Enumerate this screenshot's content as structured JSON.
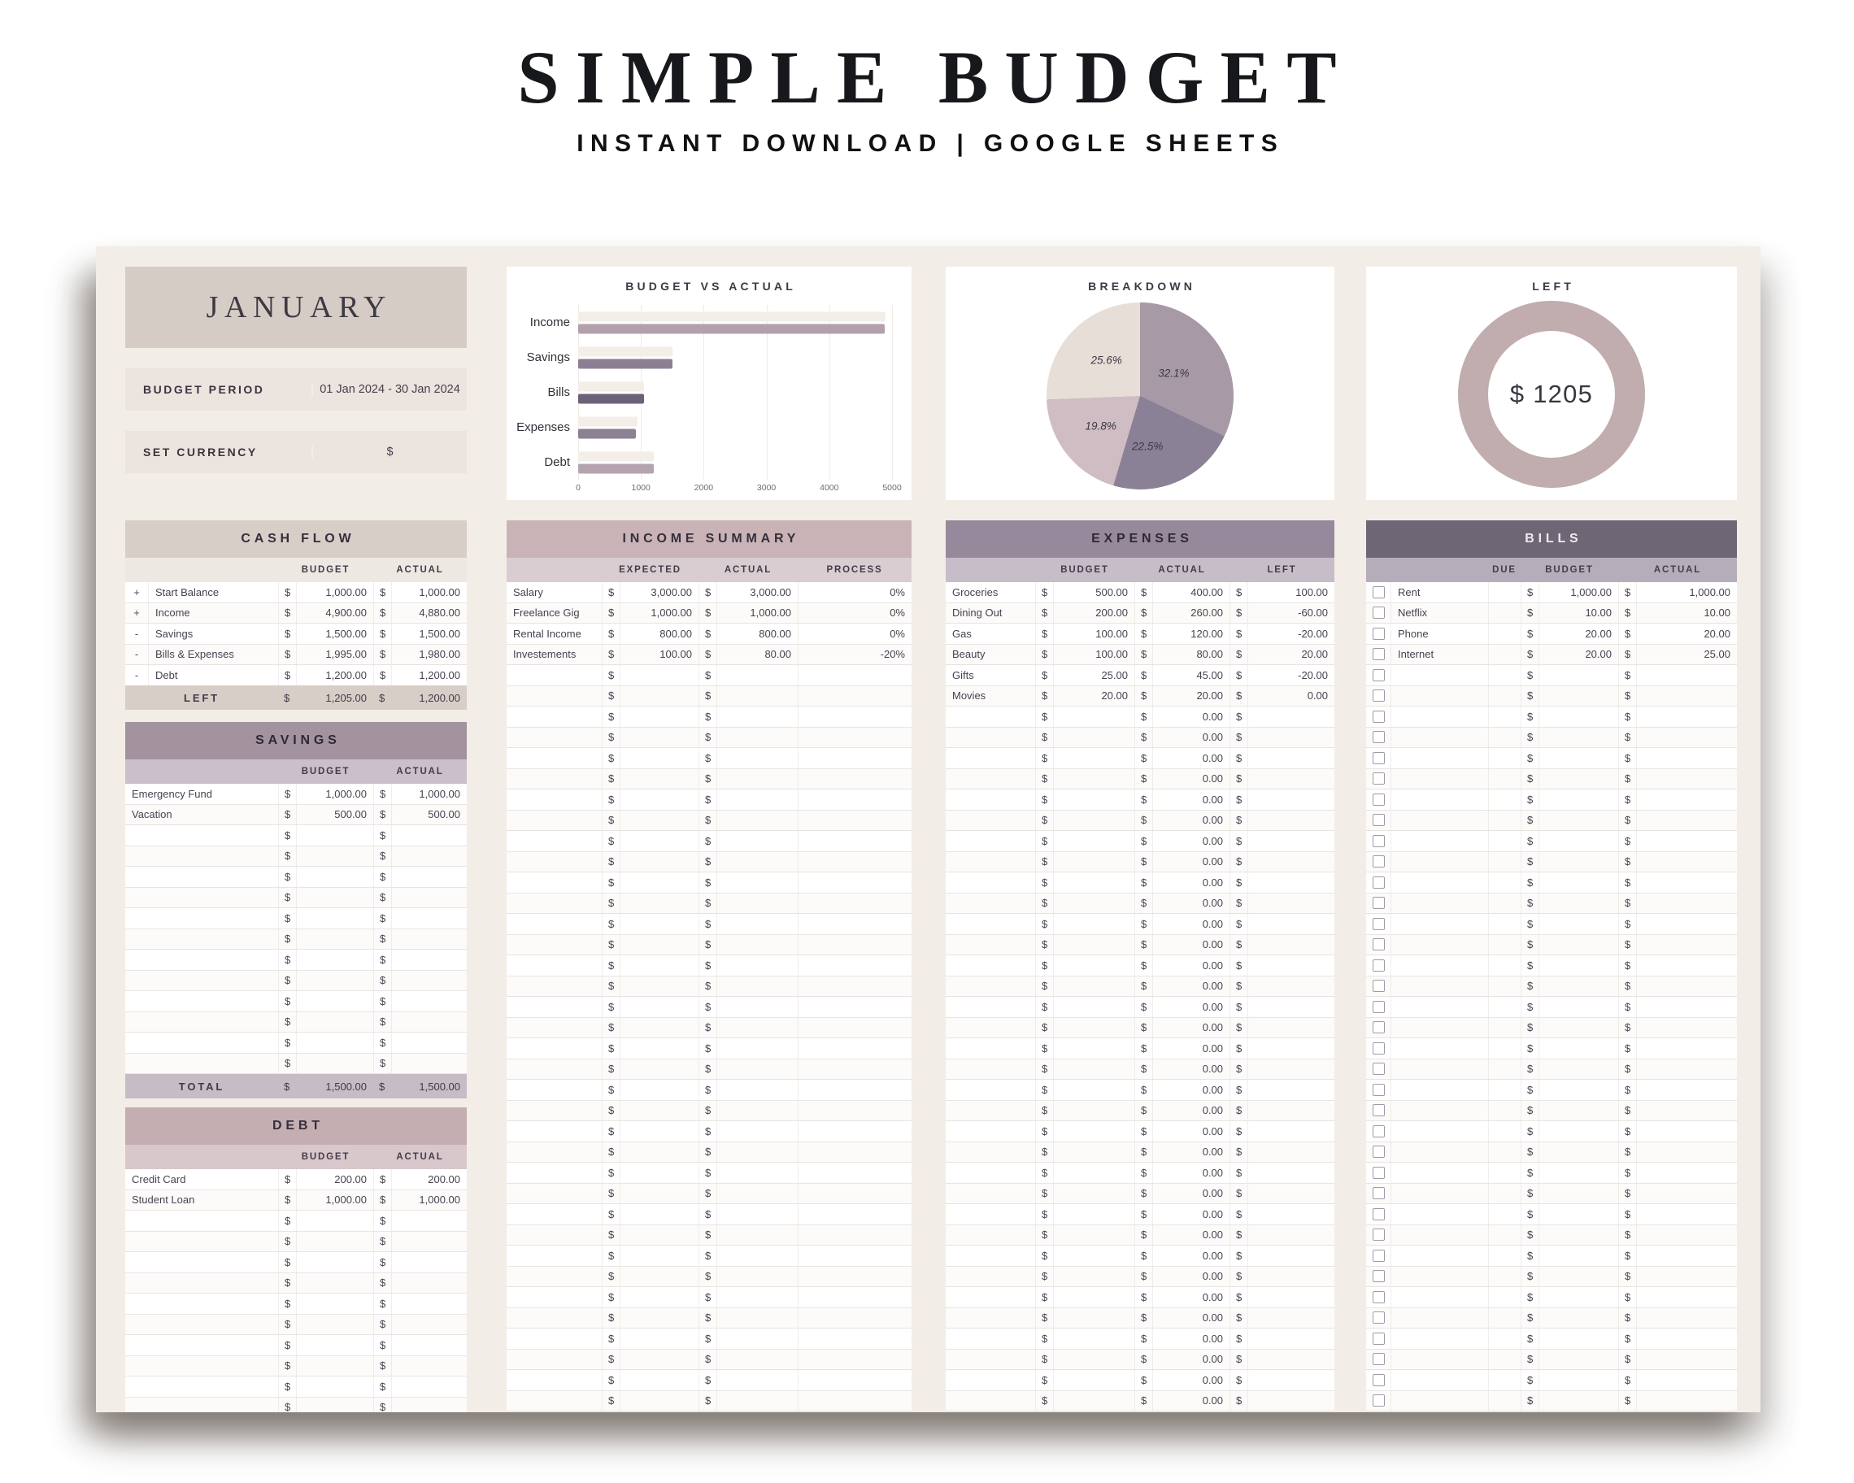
{
  "header": {
    "title": "SIMPLE BUDGET",
    "subtitle": "INSTANT DOWNLOAD | GOOGLE SHEETS"
  },
  "month_card": {
    "month": "JANUARY",
    "budget_period_label": "BUDGET PERIOD",
    "budget_period_value": "01 Jan 2024 - 30 Jan 2024",
    "set_currency_label": "SET CURRENCY",
    "set_currency_value": "$"
  },
  "currency_symbol": "$",
  "colors": {
    "sheet_bg": "#f3ede7",
    "month_block": "#d6ccc6",
    "info_row": "#ebe4df",
    "cashflow_header": "#d7cec8",
    "cashflow_subheader": "#eee8e3",
    "cashflow_left_row": "#d7cec8",
    "savings_header": "#a2939f",
    "savings_subheader": "#cabfca",
    "savings_total_row": "#c6bcc6",
    "debt_header": "#c4aeb2",
    "debt_subheader": "#d8c8cb",
    "income_header": "#c9b3b7",
    "income_subheader": "#d9cdd1",
    "expenses_header": "#95899b",
    "expenses_subheader": "#c6bdc9",
    "bills_header": "#6e6575",
    "bills_subheader": "#b5aeba",
    "bar_budget": "#f3eee8",
    "donut_ring": "#c1acae"
  },
  "chart_data": [
    {
      "type": "bar",
      "title": "BUDGET VS ACTUAL",
      "orientation": "horizontal",
      "categories": [
        "Income",
        "Savings",
        "Bills",
        "Expenses",
        "Debt"
      ],
      "series": [
        {
          "name": "Budget",
          "values": [
            4900,
            1500,
            1050,
            945,
            1200
          ],
          "color": "#f3eee8"
        },
        {
          "name": "Actual",
          "values": [
            4880,
            1500,
            1055,
            925,
            1200
          ],
          "colors": [
            "#b2a1aa",
            "#8d7f93",
            "#6b6178",
            "#8d8194",
            "#b5a4b0"
          ]
        }
      ],
      "xlim": [
        0,
        5000
      ],
      "xticks": [
        "0",
        "1000",
        "2000",
        "3000",
        "4000",
        "5000"
      ],
      "grid": true,
      "legend": false
    },
    {
      "type": "pie",
      "title": "BREAKDOWN",
      "slices": [
        {
          "label": "32.1%",
          "value": 32.1,
          "color": "#a79aa6",
          "label_x": 68,
          "label_y": 38
        },
        {
          "label": "22.5%",
          "value": 22.5,
          "color": "#8b8196",
          "label_x": 54,
          "label_y": 77
        },
        {
          "label": "19.8%",
          "value": 19.8,
          "color": "#d0bdc3",
          "label_x": 29,
          "label_y": 66
        },
        {
          "label": "25.6%",
          "value": 25.6,
          "color": "#e7ded7",
          "label_x": 32,
          "label_y": 31
        }
      ],
      "start_angle_deg": 0,
      "direction": "clockwise",
      "legend": false
    },
    {
      "type": "pie",
      "subtype": "donut",
      "title": "LEFT",
      "center_value": "$ 1205",
      "ring_color": "#c1acae",
      "legend": false
    }
  ],
  "cash_flow": {
    "title": "CASH FLOW",
    "columns": [
      "BUDGET",
      "ACTUAL"
    ],
    "rows": [
      {
        "sign": "+",
        "name": "Start Balance",
        "budget": "1,000.00",
        "actual": "1,000.00"
      },
      {
        "sign": "+",
        "name": "Income",
        "budget": "4,900.00",
        "actual": "4,880.00"
      },
      {
        "sign": "-",
        "name": "Savings",
        "budget": "1,500.00",
        "actual": "1,500.00"
      },
      {
        "sign": "-",
        "name": "Bills & Expenses",
        "budget": "1,995.00",
        "actual": "1,980.00"
      },
      {
        "sign": "-",
        "name": "Debt",
        "budget": "1,200.00",
        "actual": "1,200.00"
      }
    ],
    "left_row": {
      "name": "LEFT",
      "budget": "1,205.00",
      "actual": "1,200.00"
    }
  },
  "savings": {
    "title": "SAVINGS",
    "columns": [
      "BUDGET",
      "ACTUAL"
    ],
    "rows": [
      {
        "name": "Emergency Fund",
        "budget": "1,000.00",
        "actual": "1,000.00"
      },
      {
        "name": "Vacation",
        "budget": "500.00",
        "actual": "500.00"
      }
    ],
    "empty_rows": 12,
    "total_row": {
      "name": "TOTAL",
      "budget": "1,500.00",
      "actual": "1,500.00"
    }
  },
  "debt": {
    "title": "DEBT",
    "columns": [
      "BUDGET",
      "ACTUAL"
    ],
    "rows": [
      {
        "name": "Credit Card",
        "budget": "200.00",
        "actual": "200.00"
      },
      {
        "name": "Student Loan",
        "budget": "1,000.00",
        "actual": "1,000.00"
      }
    ],
    "empty_rows": 10
  },
  "income_summary": {
    "title": "INCOME SUMMARY",
    "columns": [
      "EXPECTED",
      "ACTUAL",
      "PROCESS"
    ],
    "rows": [
      {
        "name": "Salary",
        "expected": "3,000.00",
        "actual": "3,000.00",
        "process": "0%"
      },
      {
        "name": "Freelance Gig",
        "expected": "1,000.00",
        "actual": "1,000.00",
        "process": "0%"
      },
      {
        "name": "Rental Income",
        "expected": "800.00",
        "actual": "800.00",
        "process": "0%"
      },
      {
        "name": "Investements",
        "expected": "100.00",
        "actual": "80.00",
        "process": "-20%"
      }
    ],
    "empty_rows": 36
  },
  "expenses": {
    "title": "EXPENSES",
    "columns": [
      "BUDGET",
      "ACTUAL",
      "LEFT"
    ],
    "rows": [
      {
        "name": "Groceries",
        "budget": "500.00",
        "actual": "400.00",
        "left": "100.00"
      },
      {
        "name": "Dining Out",
        "budget": "200.00",
        "actual": "260.00",
        "left": "-60.00"
      },
      {
        "name": "Gas",
        "budget": "100.00",
        "actual": "120.00",
        "left": "-20.00"
      },
      {
        "name": "Beauty",
        "budget": "100.00",
        "actual": "80.00",
        "left": "20.00"
      },
      {
        "name": "Gifts",
        "budget": "25.00",
        "actual": "45.00",
        "left": "-20.00"
      },
      {
        "name": "Movies",
        "budget": "20.00",
        "actual": "20.00",
        "left": "0.00"
      }
    ],
    "empty_rows": 34,
    "empty_actual_value": "0.00"
  },
  "bills": {
    "title": "BILLS",
    "columns": [
      "DUE",
      "BUDGET",
      "ACTUAL"
    ],
    "rows": [
      {
        "name": "Rent",
        "due": "",
        "budget": "1,000.00",
        "actual": "1,000.00"
      },
      {
        "name": "Netflix",
        "due": "",
        "budget": "10.00",
        "actual": "10.00"
      },
      {
        "name": "Phone",
        "due": "",
        "budget": "20.00",
        "actual": "20.00"
      },
      {
        "name": "Internet",
        "due": "",
        "budget": "20.00",
        "actual": "25.00"
      }
    ],
    "empty_rows": 36
  }
}
